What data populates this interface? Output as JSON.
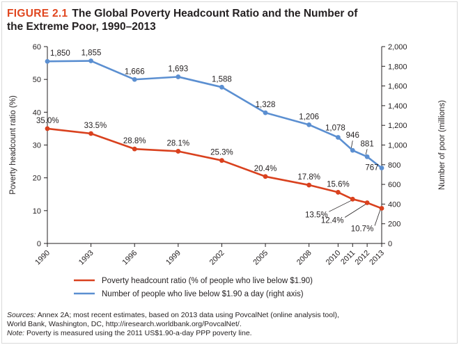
{
  "figure": {
    "label": "FIGURE 2.1",
    "title_line1": "The Global Poverty Headcount Ratio and the Number of",
    "title_line2": "the Extreme Poor, 1990–2013"
  },
  "colors": {
    "headcount_series": "#d9411e",
    "poor_series": "#5b8fd1",
    "title_accent": "#e0461f"
  },
  "footnote": {
    "sources_label": "Sources:",
    "sources_text": "Annex 2A; most recent estimates, based on 2013 data using PovcalNet (online analysis tool),",
    "sources_text2": "World Bank, Washington, DC, http://iresearch.worldbank.org/PovcalNet/.",
    "note_label": "Note:",
    "note_text": "Poverty is measured using the 2011 US$1.90-a-day PPP poverty line."
  },
  "chart_data": {
    "type": "line",
    "x": [
      1990,
      1993,
      1996,
      1999,
      2002,
      2005,
      2008,
      2010,
      2011,
      2012,
      2013
    ],
    "xticklabels": [
      "1990",
      "1993",
      "1996",
      "1999",
      "2002",
      "2005",
      "2008",
      "2010",
      "2011",
      "2012",
      "2013"
    ],
    "ylabel": "Poverty headcount ratio (%)",
    "ylim": [
      0,
      60
    ],
    "yticks": [
      "0",
      "10",
      "20",
      "30",
      "40",
      "50",
      "60"
    ],
    "y2label": "Number of poor (millions)",
    "y2lim": [
      0,
      2000
    ],
    "y2ticks": [
      "0",
      "200",
      "400",
      "600",
      "800",
      "1,000",
      "1,200",
      "1,400",
      "1,600",
      "1,800",
      "2,000"
    ],
    "series": [
      {
        "name": "Poverty headcount ratio (% of people who live below $1.90)",
        "axis": "left",
        "values": [
          35.0,
          33.5,
          28.8,
          28.1,
          25.3,
          20.4,
          17.8,
          15.6,
          13.5,
          12.4,
          10.7
        ],
        "labels": [
          "35.0%",
          "33.5%",
          "28.8%",
          "28.1%",
          "25.3%",
          "20.4%",
          "17.8%",
          "15.6%",
          "13.5%",
          "12.4%",
          "10.7%"
        ]
      },
      {
        "name": "Number of people who live below $1.90 a day (right axis)",
        "axis": "right",
        "values": [
          1850,
          1855,
          1666,
          1693,
          1588,
          1328,
          1206,
          1078,
          946,
          881,
          767
        ],
        "labels": [
          "1,850",
          "1,855",
          "1,666",
          "1,693",
          "1,588",
          "1,328",
          "1,206",
          "1,078",
          "946",
          "881",
          "767"
        ]
      }
    ]
  }
}
